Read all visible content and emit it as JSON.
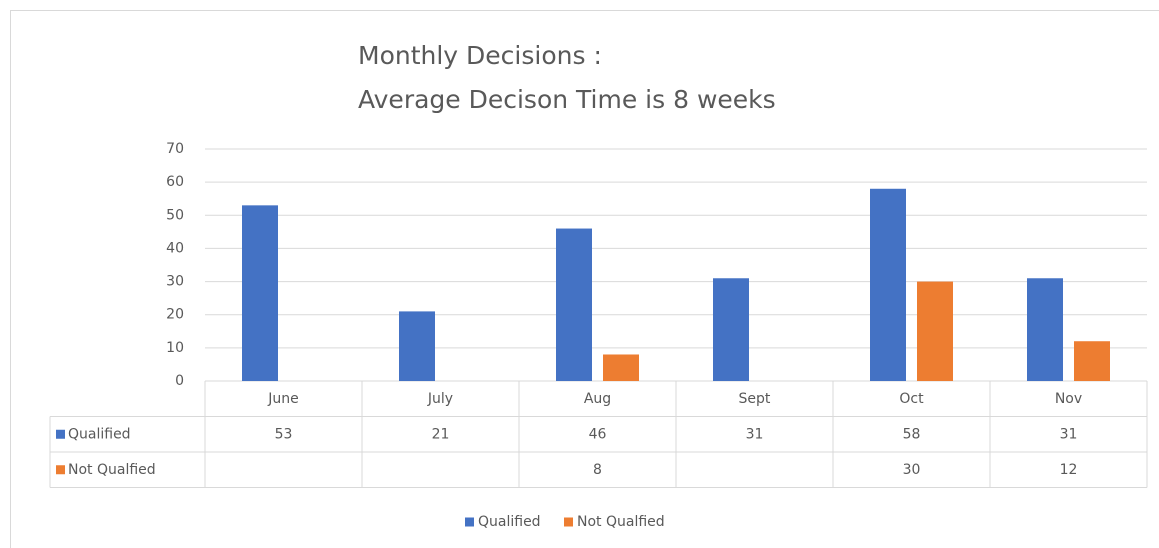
{
  "chart_data": {
    "type": "bar",
    "title": [
      "Monthly Decisions :",
      "Average Decison Time is 8 weeks"
    ],
    "categories": [
      "June",
      "July",
      "Aug",
      "Sept",
      "Oct",
      "Nov"
    ],
    "series": [
      {
        "name": "Qualified",
        "color": "#4472c4",
        "values": [
          53,
          21,
          46,
          31,
          58,
          31
        ]
      },
      {
        "name": "Not Qualfied",
        "color": "#ed7d31",
        "values": [
          null,
          null,
          8,
          null,
          30,
          12
        ]
      }
    ],
    "ylim": [
      0,
      70
    ],
    "yticks": [
      0,
      10,
      20,
      30,
      40,
      50,
      60,
      70
    ],
    "grid": true,
    "data_table": true,
    "legend": "bottom"
  }
}
